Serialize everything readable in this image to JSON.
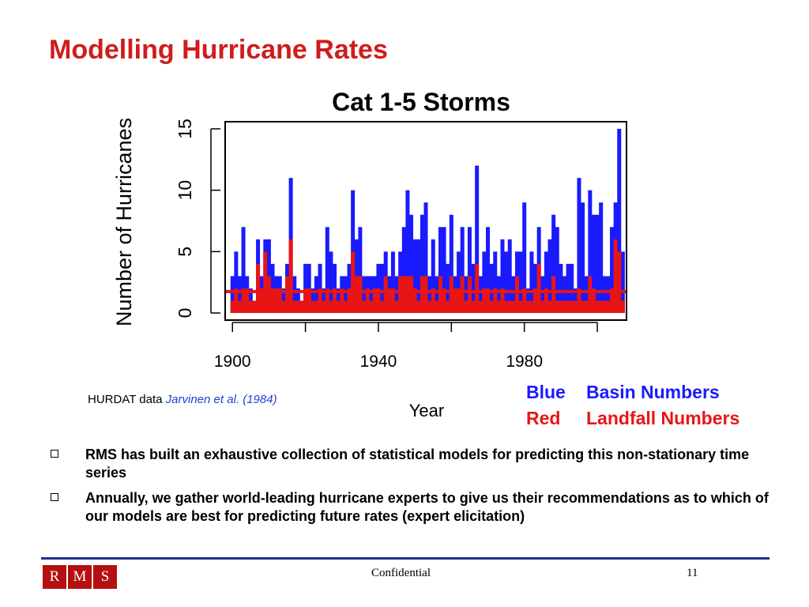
{
  "slide": {
    "title": "Modelling Hurricane Rates",
    "source_prefix": "HURDAT data ",
    "source_citation": "Jarvinen et al. (1984)",
    "legend": [
      {
        "key": "Blue",
        "label": "Basin Numbers",
        "color": "#1a1aff"
      },
      {
        "key": "Red",
        "label": "Landfall Numbers",
        "color": "#e81515"
      }
    ],
    "bullets": [
      "RMS has built an exhaustive collection of statistical models for predicting this non-stationary time series",
      "Annually, we gather world-leading hurricane experts to give us their recommendations as to which of our models are best for predicting future rates (expert elicitation)"
    ]
  },
  "footer": {
    "logo_letters": [
      "R",
      "M",
      "S"
    ],
    "confidential": "Confidential",
    "page_number": "11"
  },
  "colors": {
    "title": "#d01c1c",
    "basin": "#1a1aff",
    "landfall": "#e81515",
    "footer_rule": "#1f2f8f",
    "logo": "#b41010"
  },
  "chart_data": {
    "type": "bar",
    "title": "Cat 1-5 Storms",
    "xlabel": "Year",
    "ylabel": "Number of Hurricanes",
    "xlim": [
      1898,
      2008
    ],
    "ylim": [
      0,
      15
    ],
    "x_ticks": [
      1900,
      1920,
      1940,
      1960,
      1980,
      2000
    ],
    "x_tick_labels": [
      "1900",
      "1940",
      "1980"
    ],
    "y_ticks": [
      0,
      5,
      10,
      15
    ],
    "y_tick_labels": [
      "0",
      "5",
      "10",
      "15"
    ],
    "grid": false,
    "start_year": 1900,
    "series": [
      {
        "name": "Basin Numbers",
        "color": "#1a1aff",
        "values": [
          3,
          5,
          3,
          7,
          3,
          2,
          1,
          6,
          3,
          6,
          6,
          4,
          3,
          3,
          2,
          4,
          11,
          3,
          2,
          1,
          4,
          4,
          2,
          3,
          4,
          2,
          7,
          5,
          4,
          2,
          3,
          3,
          4,
          10,
          6,
          7,
          3,
          3,
          3,
          3,
          4,
          4,
          5,
          3,
          5,
          3,
          5,
          7,
          10,
          8,
          6,
          6,
          8,
          9,
          3,
          6,
          3,
          7,
          7,
          4,
          8,
          3,
          5,
          7,
          3,
          7,
          4,
          12,
          3,
          5,
          7,
          4,
          5,
          3,
          6,
          5,
          6,
          3,
          5,
          5,
          9,
          2,
          5,
          4,
          7,
          3,
          5,
          6,
          8,
          7,
          4,
          3,
          4,
          4,
          2,
          11,
          9,
          3,
          10,
          8,
          8,
          9,
          3,
          3,
          7,
          9,
          15,
          5
        ]
      },
      {
        "name": "Landfall Numbers",
        "color": "#e81515",
        "values": [
          1,
          2,
          1,
          2,
          2,
          1,
          1,
          4,
          2,
          5,
          3,
          2,
          2,
          2,
          1,
          3,
          6,
          1,
          1,
          1,
          2,
          2,
          1,
          1,
          2,
          1,
          2,
          1,
          2,
          1,
          2,
          1,
          2,
          5,
          3,
          3,
          1,
          2,
          1,
          2,
          2,
          1,
          3,
          2,
          2,
          1,
          3,
          3,
          3,
          3,
          2,
          1,
          3,
          3,
          1,
          2,
          1,
          3,
          2,
          1,
          3,
          2,
          2,
          3,
          1,
          3,
          1,
          4,
          1,
          2,
          2,
          1,
          2,
          1,
          2,
          1,
          1,
          1,
          3,
          1,
          2,
          1,
          1,
          2,
          4,
          1,
          2,
          1,
          3,
          1,
          1,
          1,
          1,
          1,
          1,
          2,
          1,
          1,
          3,
          2,
          1,
          1,
          1,
          1,
          2,
          6,
          5,
          1
        ]
      }
    ],
    "reference_line": {
      "y": 1.75,
      "color": "#e81515"
    }
  }
}
